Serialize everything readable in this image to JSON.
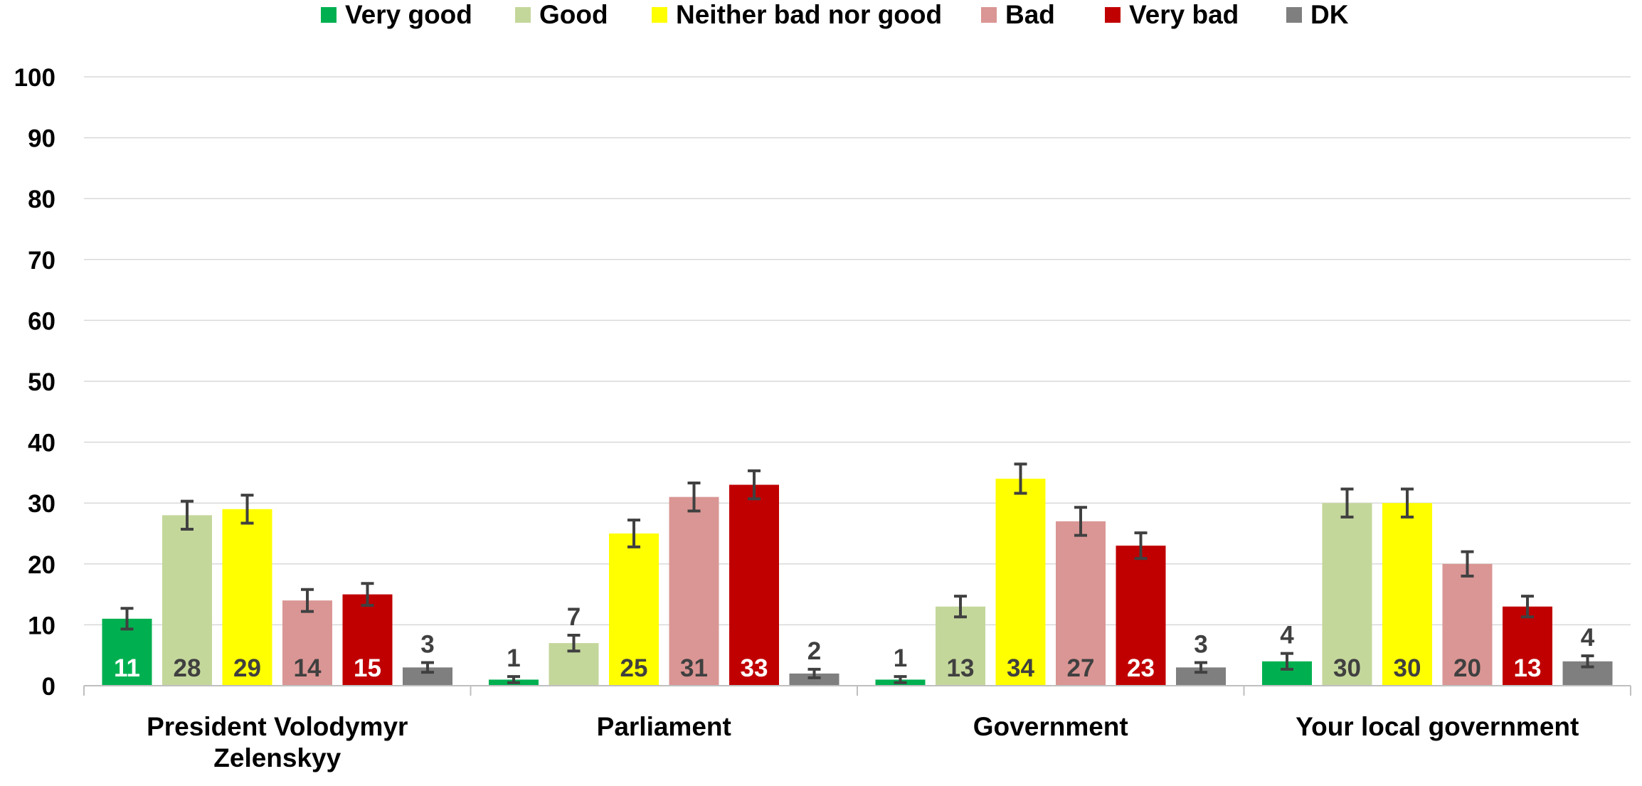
{
  "chart_data": {
    "type": "bar",
    "categories": [
      "President Volodymyr Zelenskyy",
      "Parliament",
      "Government",
      "Your local government"
    ],
    "category_label_lines": [
      [
        "President Volodymyr",
        "Zelenskyy"
      ],
      [
        "Parliament"
      ],
      [
        "Government"
      ],
      [
        "Your local government"
      ]
    ],
    "series": [
      {
        "name": "Very good",
        "color": "#00b050",
        "label_color": "#ffffff",
        "values": [
          11,
          1,
          1,
          4
        ],
        "labels": [
          "11",
          "1",
          "1",
          "4"
        ],
        "error": [
          1.7,
          0.5,
          0.5,
          1.3
        ]
      },
      {
        "name": "Good",
        "color": "#c4d79b",
        "label_color": "#404040",
        "values": [
          28,
          7,
          13,
          30
        ],
        "labels": [
          "28",
          "7",
          "13",
          "30"
        ],
        "error": [
          2.3,
          1.3,
          1.7,
          2.3
        ]
      },
      {
        "name": "Neither bad nor good",
        "color": "#ffff00",
        "label_color": "#404040",
        "values": [
          29,
          25,
          34,
          30
        ],
        "labels": [
          "29",
          "25",
          "34",
          "30"
        ],
        "error": [
          2.3,
          2.2,
          2.4,
          2.3
        ]
      },
      {
        "name": "Bad",
        "color": "#da9694",
        "label_color": "#404040",
        "values": [
          14,
          31,
          27,
          20
        ],
        "labels": [
          "14",
          "31",
          "27",
          "20"
        ],
        "error": [
          1.8,
          2.3,
          2.3,
          2.0
        ]
      },
      {
        "name": "Very bad",
        "color": "#c00000",
        "label_color": "#ffffff",
        "values": [
          15,
          33,
          23,
          13
        ],
        "labels": [
          "15",
          "33",
          "23",
          "13"
        ],
        "error": [
          1.8,
          2.3,
          2.1,
          1.7
        ]
      },
      {
        "name": "DK",
        "color": "#7f7f7f",
        "label_color": "#404040",
        "values": [
          3,
          2,
          3,
          4
        ],
        "labels": [
          "3",
          "2",
          "3",
          "4"
        ],
        "error": [
          0.8,
          0.7,
          0.8,
          0.9
        ]
      }
    ],
    "ylim": [
      0,
      100
    ],
    "yticks": [
      0,
      10,
      20,
      30,
      40,
      50,
      60,
      70,
      80,
      90,
      100
    ],
    "grid": true,
    "error_bars": true,
    "legend_position": "top",
    "title": "",
    "xlabel": "",
    "ylabel": ""
  }
}
